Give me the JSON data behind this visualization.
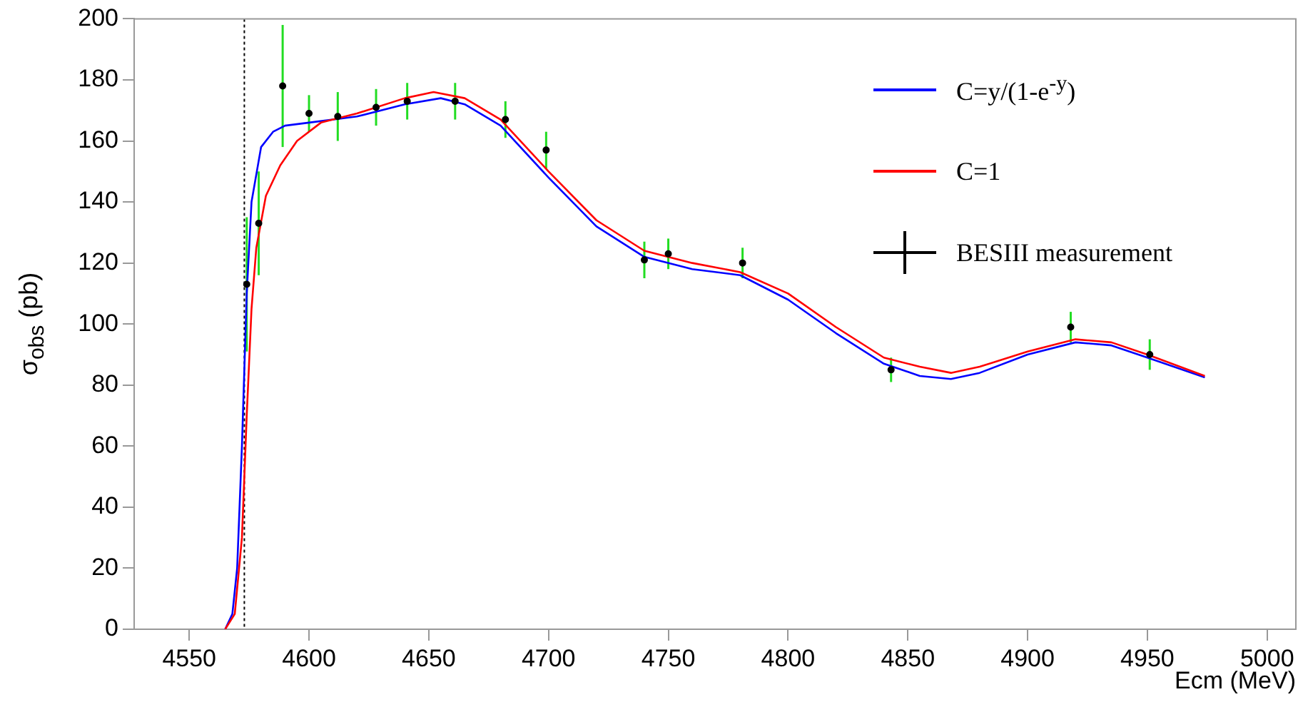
{
  "chart_data": {
    "type": "line",
    "xlabel": "Ecm (MeV)",
    "ylabel": "σ$_{obs}$ (pb)",
    "xlim": [
      4527,
      5012
    ],
    "xticks": [
      4550,
      4600,
      4650,
      4700,
      4750,
      4800,
      4850,
      4900,
      4950,
      5000
    ],
    "ylim": [
      0,
      200
    ],
    "yticks": [
      0,
      20,
      40,
      60,
      80,
      100,
      120,
      140,
      160,
      180,
      200
    ],
    "grid": false,
    "legend": "top right",
    "marker": "none",
    "line_style": "solid",
    "ref_lines": [
      {
        "axis": "x",
        "value": 4573,
        "line_style": "dotted",
        "color": "#000000"
      }
    ],
    "series": [
      {
        "name": "C=y/(1-e$^{-y}$)",
        "color": "#0000ff",
        "x": [
          4565,
          4568,
          4570,
          4572,
          4574,
          4576,
          4580,
          4585,
          4590,
          4600,
          4620,
          4640,
          4655,
          4665,
          4680,
          4700,
          4720,
          4740,
          4760,
          4780,
          4800,
          4820,
          4840,
          4855,
          4868,
          4880,
          4900,
          4920,
          4935,
          4950,
          4974
        ],
        "values": [
          0,
          5,
          20,
          60,
          110,
          140,
          158,
          163,
          165,
          166,
          168,
          172,
          174,
          172,
          165,
          148,
          132,
          122,
          118,
          116,
          108,
          97,
          87,
          83,
          82,
          84,
          90,
          94,
          93,
          89,
          82.5
        ]
      },
      {
        "name": "C=1",
        "color": "#ff0000",
        "x": [
          4565,
          4569,
          4572,
          4574,
          4576,
          4578,
          4582,
          4588,
          4595,
          4605,
          4620,
          4640,
          4652,
          4665,
          4680,
          4700,
          4720,
          4740,
          4760,
          4780,
          4800,
          4820,
          4840,
          4855,
          4868,
          4880,
          4900,
          4920,
          4935,
          4950,
          4974
        ],
        "values": [
          0,
          5,
          30,
          70,
          105,
          125,
          142,
          152,
          160,
          166,
          169,
          174,
          176,
          174,
          167,
          150,
          134,
          124,
          120,
          117,
          110,
          99,
          89,
          86,
          84,
          86,
          91,
          95,
          94,
          90,
          83
        ]
      },
      {
        "name": "BESIII measurement",
        "type": "scatter",
        "color": "#000000",
        "marker": "circle",
        "x": [
          4574,
          4579,
          4589,
          4600,
          4612,
          4628,
          4641,
          4661,
          4682,
          4699,
          4740,
          4750,
          4781,
          4843,
          4918,
          4951
        ],
        "values": [
          113,
          133,
          178,
          169,
          168,
          171,
          173,
          173,
          167,
          157,
          121,
          123,
          120,
          85,
          99,
          90
        ],
        "errors": [
          22,
          17,
          20,
          6,
          8,
          6,
          6,
          6,
          6,
          6,
          6,
          5,
          5,
          4,
          5,
          5
        ]
      }
    ]
  }
}
